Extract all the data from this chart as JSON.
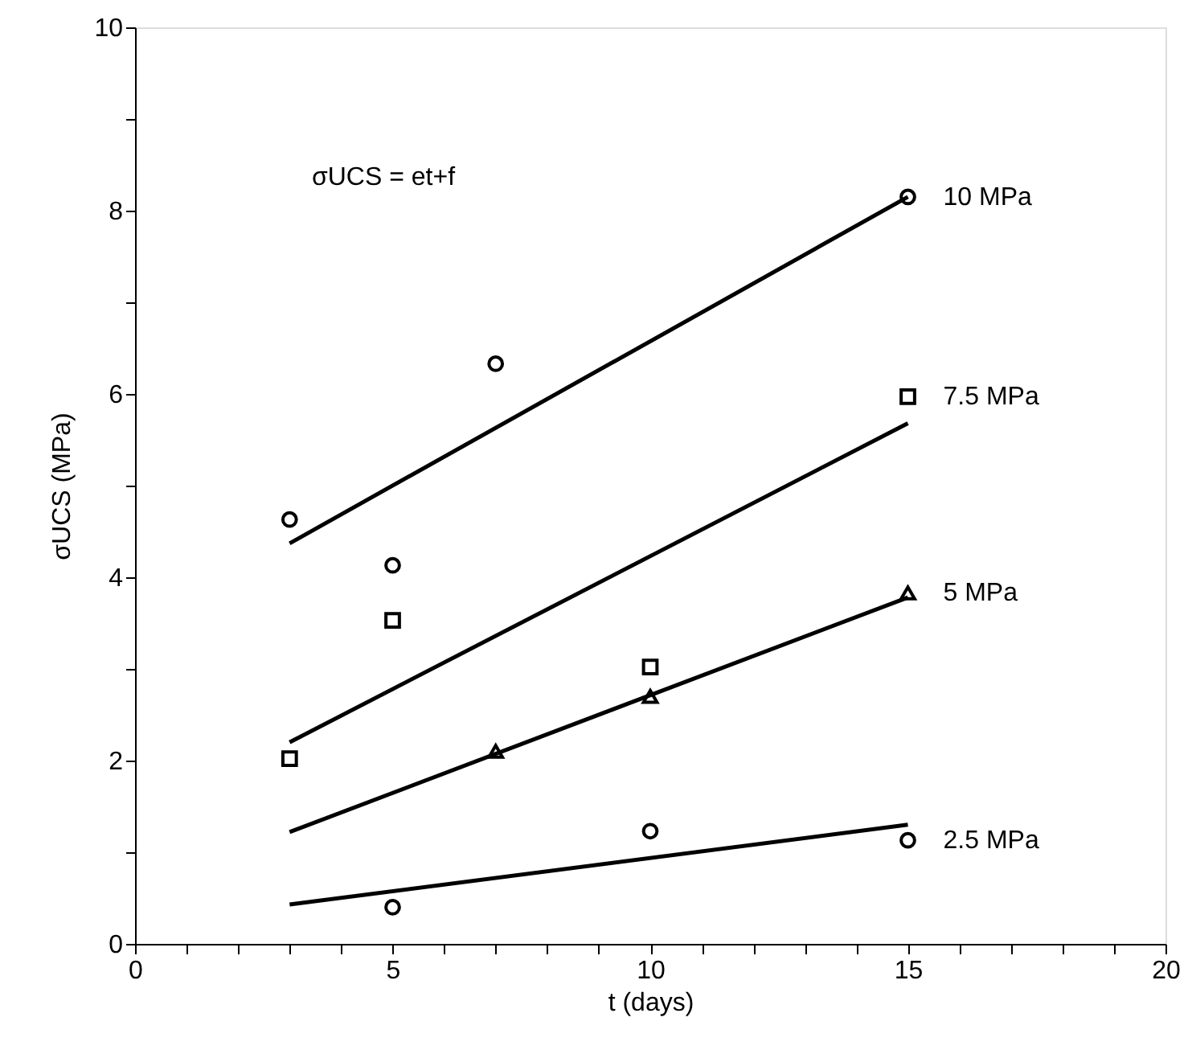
{
  "chart_data": {
    "type": "scatter",
    "xlabel": "t (days)",
    "ylabel": "σUCS (MPa)",
    "annotations": [
      "σUCS = et+f"
    ],
    "xlim": [
      0,
      20
    ],
    "ylim": [
      0,
      10
    ],
    "xticks": [
      0,
      {
        "value": 1,
        "label": null
      },
      {
        "value": 2,
        "label": null
      },
      {
        "value": 3,
        "label": null
      },
      {
        "value": 4,
        "label": null
      },
      5,
      {
        "value": 6,
        "label": null
      },
      {
        "value": 7,
        "label": null
      },
      {
        "value": 8,
        "label": null
      },
      {
        "value": 9,
        "label": null
      },
      10,
      {
        "value": 11,
        "label": null
      },
      {
        "value": 12,
        "label": null
      },
      {
        "value": 13,
        "label": null
      },
      {
        "value": 14,
        "label": null
      },
      15,
      {
        "value": 16,
        "label": null
      },
      {
        "value": 17,
        "label": null
      },
      {
        "value": 18,
        "label": null
      },
      {
        "value": 19,
        "label": null
      },
      20
    ],
    "yticks": [
      {
        "value": 0,
        "label": "0"
      },
      {
        "value": 1,
        "label": null
      },
      {
        "value": 2,
        "label": "2"
      },
      {
        "value": 3,
        "label": null
      },
      {
        "value": 4,
        "label": "4"
      },
      {
        "value": 5,
        "label": null
      },
      {
        "value": 6,
        "label": "6"
      },
      {
        "value": 7,
        "label": null
      },
      {
        "value": 8,
        "label": "8"
      },
      {
        "value": 9,
        "label": null
      },
      {
        "value": 10,
        "label": "10"
      }
    ],
    "grid": false,
    "series": [
      {
        "name": "10 MPa",
        "marker": "circle",
        "color": "#000000",
        "x": [
          3,
          5,
          7,
          15
        ],
        "values": [
          4.63,
          4.13,
          6.33,
          8.15
        ]
      },
      {
        "name": "7.5 MPa",
        "marker": "square",
        "color": "#000000",
        "x": [
          3,
          5,
          10,
          15
        ],
        "values": [
          2.02,
          3.53,
          3.02,
          5.97
        ]
      },
      {
        "name": "5 MPa",
        "marker": "triangle",
        "color": "#000000",
        "x": [
          7,
          10,
          15
        ],
        "values": [
          2.1,
          2.7,
          3.83
        ]
      },
      {
        "name": "2.5 MPa",
        "marker": "circle",
        "color": "#000000",
        "x": [
          5,
          10,
          15
        ],
        "values": [
          0.4,
          1.23,
          1.13
        ]
      },
      {
        "type": "line",
        "color": "#000000",
        "x": [
          3,
          15
        ],
        "values": [
          4.37,
          8.15
        ]
      },
      {
        "type": "line",
        "color": "#000000",
        "x": [
          3,
          15
        ],
        "values": [
          2.2,
          5.68
        ]
      },
      {
        "type": "line",
        "color": "#000000",
        "x": [
          3,
          15
        ],
        "values": [
          1.22,
          3.78
        ]
      },
      {
        "type": "line",
        "color": "#000000",
        "x": [
          3,
          15
        ],
        "values": [
          0.43,
          1.3
        ]
      }
    ]
  }
}
